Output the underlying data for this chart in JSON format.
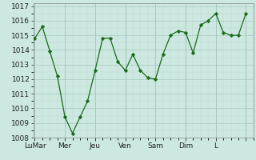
{
  "x_values": [
    0,
    0.25,
    0.5,
    0.75,
    1.0,
    1.25,
    1.5,
    1.75,
    2.0,
    2.25,
    2.5,
    2.75,
    3.0,
    3.25,
    3.5,
    3.75,
    4.0,
    4.25,
    4.5,
    4.75,
    5.0,
    5.25,
    5.5,
    5.75,
    6.0,
    6.25,
    6.5,
    6.75,
    7.0
  ],
  "y_values": [
    1014.8,
    1015.6,
    1013.9,
    1012.2,
    1009.4,
    1008.3,
    1009.4,
    1010.5,
    1012.6,
    1014.8,
    1014.8,
    1013.2,
    1012.6,
    1013.7,
    1012.6,
    1012.1,
    1012.0,
    1013.7,
    1015.0,
    1015.3,
    1015.2,
    1013.8,
    1015.7,
    1016.0,
    1016.5,
    1015.2,
    1015.0,
    1015.0,
    1016.5
  ],
  "line_color": "#1a6b1a",
  "marker_color": "#1a6b1a",
  "bg_color": "#cce8e0",
  "grid_color_major": "#a8c8c0",
  "grid_color_minor": "#bcd8d0",
  "x_tick_positions": [
    0,
    1,
    2,
    3,
    4,
    5,
    6,
    7
  ],
  "x_tick_labels": [
    "LuMar",
    "Mer",
    "Jeu",
    "Ven",
    "Sam",
    "Dim",
    "L",
    ""
  ],
  "ylim": [
    1008,
    1017.2
  ],
  "yticks": [
    1008,
    1009,
    1010,
    1011,
    1012,
    1013,
    1014,
    1015,
    1016,
    1017
  ]
}
